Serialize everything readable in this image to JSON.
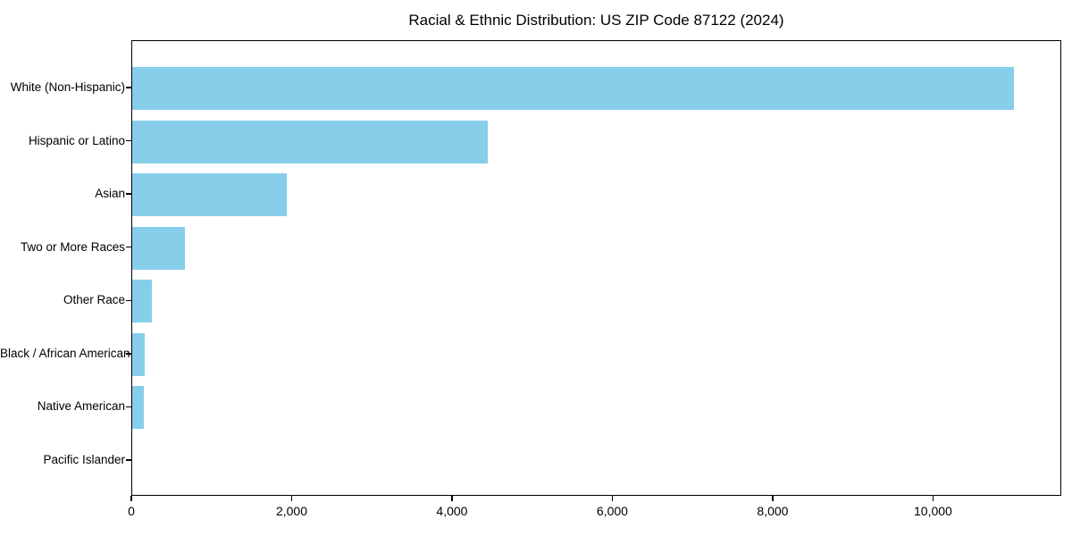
{
  "title": "Racial & Ethnic Distribution: US ZIP Code 87122 (2024)",
  "chart_data": {
    "type": "bar",
    "orientation": "horizontal",
    "title": "Racial & Ethnic Distribution: US ZIP Code 87122 (2024)",
    "categories": [
      "White (Non-Hispanic)",
      "Hispanic or Latino",
      "Asian",
      "Two or More Races",
      "Other Race",
      "Black / African American",
      "Native American",
      "Pacific Islander"
    ],
    "values": [
      11000,
      4440,
      1930,
      660,
      240,
      160,
      150,
      0
    ],
    "xlabel": "",
    "ylabel": "",
    "xlim": [
      0,
      11600
    ],
    "x_ticks": [
      0,
      2000,
      4000,
      6000,
      8000,
      10000
    ],
    "x_tick_labels": [
      "0",
      "2,000",
      "4,000",
      "6,000",
      "8,000",
      "10,000"
    ],
    "bar_color": "#87CEEB",
    "grid": false,
    "legend_position": "none"
  }
}
